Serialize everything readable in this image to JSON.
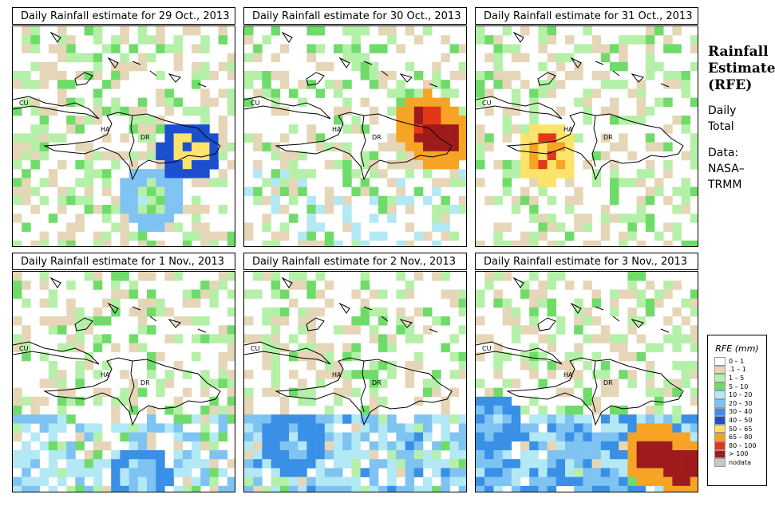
{
  "panels": [
    {
      "title": "Daily Rainfall estimate for  29 Oct., 2013",
      "hot": [
        [
          0.77,
          0.54,
          3.4
        ],
        [
          0.6,
          0.75,
          0.9
        ]
      ],
      "wet": [
        [
          0.5,
          0.85,
          0.35
        ]
      ],
      "south_heavy": 0
    },
    {
      "title": "Daily Rainfall estimate for  30 Oct., 2013",
      "hot": [
        [
          0.86,
          0.48,
          5.6
        ],
        [
          0.8,
          0.42,
          4.5
        ]
      ],
      "wet": [
        [
          0.3,
          0.25,
          0.3
        ]
      ],
      "south_heavy": 0.15
    },
    {
      "title": "Daily Rainfall estimate for  31 Oct., 2013",
      "hot": [
        [
          0.3,
          0.55,
          4.0
        ]
      ],
      "wet": [
        [
          0.8,
          0.9,
          0.4
        ]
      ],
      "south_heavy": 0
    },
    {
      "title": "Daily Rainfall estimate for  1 Nov., 2013",
      "hot": [
        [
          0.55,
          0.9,
          1.6
        ]
      ],
      "wet": [
        [
          0.5,
          0.8,
          0.5
        ]
      ],
      "south_heavy": 0.55
    },
    {
      "title": "Daily Rainfall estimate for  2 Nov., 2013",
      "hot": [
        [
          0.2,
          0.75,
          1.8
        ]
      ],
      "wet": [
        [
          0.5,
          0.7,
          0.6
        ]
      ],
      "south_heavy": 0.7
    },
    {
      "title": "Daily Rainfall estimate for  3 Nov., 2013",
      "hot": [
        [
          0.78,
          0.8,
          5.8
        ],
        [
          0.9,
          0.85,
          5.8
        ],
        [
          0.05,
          0.66,
          2.0
        ]
      ],
      "wet": [
        [
          0.5,
          0.55,
          0.9
        ]
      ],
      "south_heavy": 0.9
    }
  ],
  "map_labels": {
    "cu": "CU",
    "ha": "HA",
    "dr": "DR"
  },
  "side": {
    "title_lines": [
      "Rainfall",
      "Estimate",
      "(RFE)"
    ],
    "period_lines": [
      "Daily",
      "Total"
    ],
    "data_lines": [
      "Data:",
      "NASA–",
      "TRMM"
    ]
  },
  "legend": {
    "title": "RFE (mm)",
    "items": [
      {
        "label": "0 – 1",
        "color": "#ffffff"
      },
      {
        "label": ".1 – 1",
        "color": "#e6d6b8"
      },
      {
        "label": "1 – 5",
        "color": "#b5f0a8"
      },
      {
        "label": "5 – 10",
        "color": "#6fdc6a"
      },
      {
        "label": "10 – 20",
        "color": "#b3e8f5"
      },
      {
        "label": "20 – 30",
        "color": "#7ec3f2"
      },
      {
        "label": "30 – 40",
        "color": "#3a8fe6"
      },
      {
        "label": "40 – 50",
        "color": "#1c4fd0"
      },
      {
        "label": "50 – 65",
        "color": "#fde36a"
      },
      {
        "label": "65 – 80",
        "color": "#f7a325"
      },
      {
        "label": "80 – 100",
        "color": "#e2381a"
      },
      {
        "label": "> 100",
        "color": "#9e1b1b"
      },
      {
        "label": "nodata",
        "color": "#c8c8c8"
      }
    ]
  }
}
